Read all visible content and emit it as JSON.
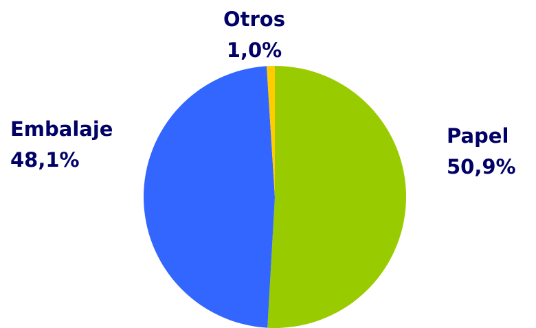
{
  "chart_data": {
    "type": "pie",
    "categories": [
      "Papel",
      "Embalaje",
      "Otros"
    ],
    "values": [
      50.9,
      48.1,
      1.0
    ],
    "value_labels": [
      "50,9%",
      "48,1%",
      "1,0%"
    ],
    "colors": [
      "#99cc00",
      "#3366ff",
      "#ffcc00"
    ]
  }
}
